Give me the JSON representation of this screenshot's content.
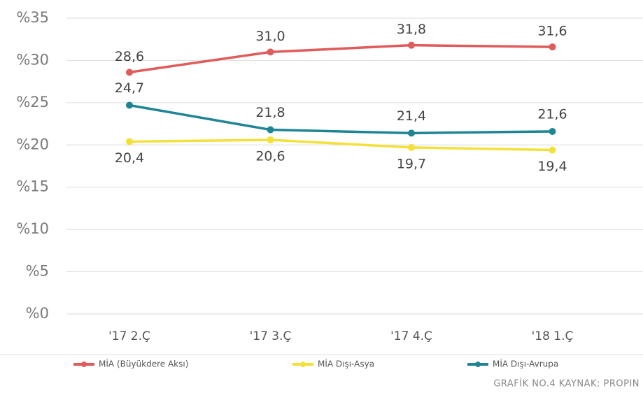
{
  "chart_data": {
    "type": "line",
    "categories": [
      "'17 2.Ç",
      "'17 3.Ç",
      "'17 4.Ç",
      "'18 1.Ç"
    ],
    "series": [
      {
        "name": "MİA (Büyükdere Aksı)",
        "color": "#e05b5b",
        "values": [
          28.6,
          31.0,
          31.8,
          31.6
        ],
        "value_labels": [
          "28,6",
          "31,0",
          "31,8",
          "31,6"
        ]
      },
      {
        "name": "MİA Dışı-Asya",
        "color": "#f4e03a",
        "values": [
          20.4,
          20.6,
          19.7,
          19.4
        ],
        "value_labels": [
          "20,4",
          "20,6",
          "19,7",
          "19,4"
        ]
      },
      {
        "name": "MİA Dışı-Avrupa",
        "color": "#1f8595",
        "values": [
          24.7,
          21.8,
          21.4,
          21.6
        ],
        "value_labels": [
          "24,7",
          "21,8",
          "21,4",
          "21,6"
        ]
      }
    ],
    "ylim": [
      0,
      35
    ],
    "yticks": [
      {
        "value": 0,
        "label": "%0"
      },
      {
        "value": 5,
        "label": "%5"
      },
      {
        "value": 10,
        "label": "%10"
      },
      {
        "value": 15,
        "label": "%15"
      },
      {
        "value": 20,
        "label": "%20"
      },
      {
        "value": 25,
        "label": "%25"
      },
      {
        "value": 30,
        "label": "%30"
      },
      {
        "value": 35,
        "label": "%35"
      }
    ],
    "grid": true,
    "legend": "bottom",
    "source": "GRAFİK NO.4  KAYNAK: PROPIN"
  }
}
